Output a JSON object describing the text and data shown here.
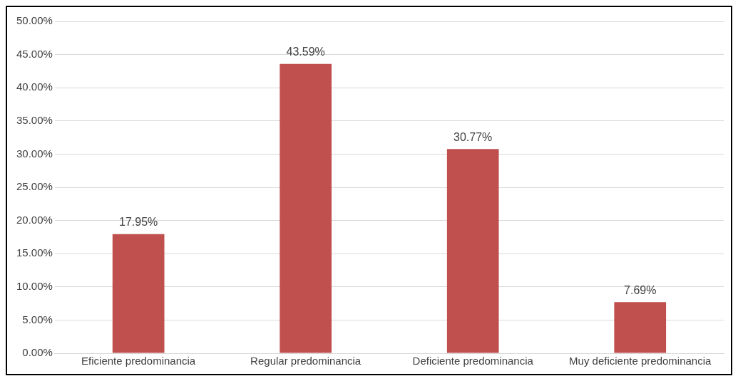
{
  "chart_data": {
    "type": "bar",
    "categories": [
      "Eficiente predominancia",
      "Regular predominancia",
      "Deficiente predominancia",
      "Muy deficiente predominancia"
    ],
    "values": [
      17.95,
      43.59,
      30.77,
      7.69
    ],
    "value_labels": [
      "17.95%",
      "43.59%",
      "30.77%",
      "7.69%"
    ],
    "color": "#c0504d",
    "ylim": [
      0,
      50
    ],
    "yticks": [
      {
        "value": 0,
        "label": "0.00%"
      },
      {
        "value": 5,
        "label": "5.00%"
      },
      {
        "value": 10,
        "label": "10.00%"
      },
      {
        "value": 15,
        "label": "15.00%"
      },
      {
        "value": 20,
        "label": "20.00%"
      },
      {
        "value": 25,
        "label": "25.00%"
      },
      {
        "value": 30,
        "label": "30.00%"
      },
      {
        "value": 35,
        "label": "35.00%"
      },
      {
        "value": 40,
        "label": "40.00%"
      },
      {
        "value": 45,
        "label": "45.00%"
      },
      {
        "value": 50,
        "label": "50.00%"
      }
    ],
    "grid": "y",
    "legend": false
  }
}
